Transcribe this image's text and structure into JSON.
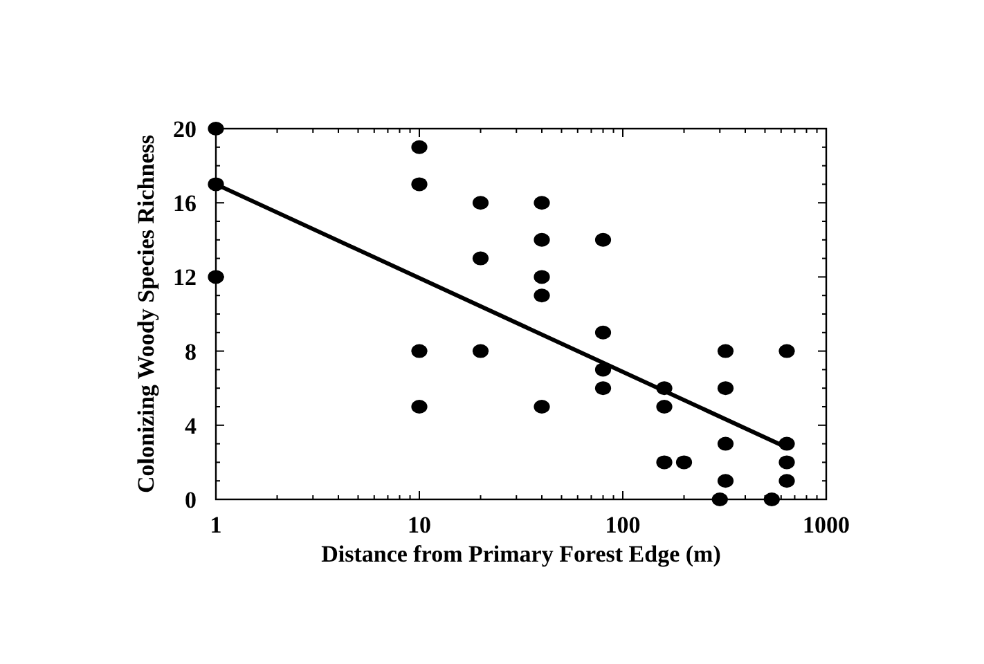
{
  "chart_data": {
    "type": "scatter",
    "xlabel": "Distance from Primary Forest Edge (m)",
    "ylabel": "Colonizing Woody Species Richness",
    "log": "x",
    "xlim": [
      1,
      1000
    ],
    "xticks": [
      1,
      10,
      100,
      1000
    ],
    "ylim": [
      0,
      20
    ],
    "yticks": [
      0,
      4,
      8,
      12,
      16,
      20
    ],
    "grid": false,
    "marker": "circle",
    "series": [
      {
        "color": "#000000",
        "x": [
          1,
          1,
          1,
          10,
          10,
          10,
          10,
          20,
          20,
          20,
          40,
          40,
          40,
          40,
          40,
          80,
          80,
          80,
          80,
          160,
          160,
          160,
          200,
          320,
          320,
          320,
          320,
          300,
          540,
          640,
          640,
          640,
          640
        ],
        "values": [
          20,
          17,
          12,
          19,
          17,
          8,
          5,
          16,
          13,
          8,
          16,
          14,
          12,
          11,
          5,
          14,
          9,
          7,
          6,
          6,
          5,
          2,
          2,
          8,
          6,
          3,
          1,
          0,
          0,
          8,
          3,
          2,
          1
        ]
      },
      {
        "type": "line",
        "color": "#000000",
        "line_style": "solid",
        "marker": "none",
        "x": [
          1,
          640
        ],
        "values": [
          17,
          2.8
        ]
      }
    ]
  }
}
